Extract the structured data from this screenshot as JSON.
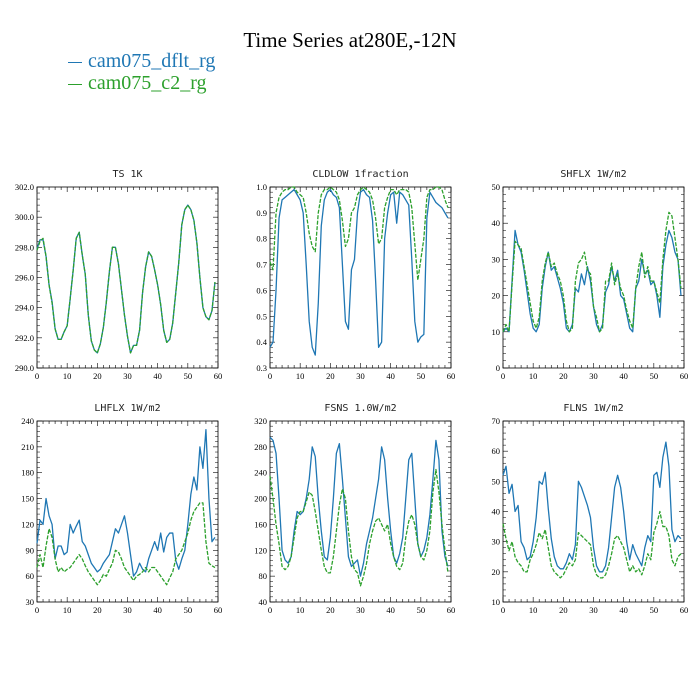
{
  "title": "Time Series at280E,-12N",
  "legend": [
    {
      "label": "cam075_dflt_rg",
      "color": "#1f77b4"
    },
    {
      "label": "cam075_c2_rg",
      "color": "#2ca02c"
    }
  ],
  "chart_data": [
    {
      "type": "line",
      "title": "TS   1K",
      "xlim": [
        0,
        60
      ],
      "ylim": [
        290,
        302
      ],
      "xticks": [
        0,
        10,
        20,
        30,
        40,
        50,
        60
      ],
      "yticks": [
        "290.0",
        "292.0",
        "294.0",
        "296.0",
        "298.0",
        "300.0",
        "302.0"
      ],
      "series": [
        {
          "name": "cam075_dflt_rg",
          "values": [
            297.9,
            298.5,
            298.5,
            297.4,
            295.5,
            294.4,
            292.6,
            291.9,
            291.9,
            292.4,
            292.8,
            294.6,
            296.5,
            298.6,
            299.0,
            297.5,
            296.2,
            293.5,
            291.8,
            291.2,
            291.0,
            291.6,
            292.7,
            294.4,
            296.4,
            298.0,
            298.0,
            296.9,
            295.2,
            293.5,
            292.1,
            291.0,
            291.5,
            291.5,
            292.5,
            295.0,
            296.7,
            297.7,
            297.4,
            296.5,
            295.5,
            294.2,
            292.5,
            291.7,
            291.9,
            293.0,
            295.0,
            297.0,
            299.5,
            300.5,
            300.8,
            300.5,
            299.8,
            298.3,
            296.0,
            294.0,
            293.4,
            293.2,
            293.8,
            295.7
          ]
        },
        {
          "name": "cam075_c2_rg",
          "values": [
            297.8,
            298.4,
            298.6,
            297.4,
            295.5,
            294.3,
            292.6,
            291.9,
            291.9,
            292.4,
            292.8,
            294.6,
            296.5,
            298.6,
            299.0,
            297.5,
            296.2,
            293.5,
            291.8,
            291.2,
            291.0,
            291.6,
            292.7,
            294.4,
            296.4,
            298.0,
            298.0,
            296.9,
            295.2,
            293.5,
            292.1,
            291.0,
            291.5,
            291.5,
            292.5,
            295.0,
            296.7,
            297.7,
            297.4,
            296.5,
            295.5,
            294.2,
            292.5,
            291.7,
            291.9,
            293.0,
            295.0,
            297.0,
            299.5,
            300.5,
            300.8,
            300.5,
            299.8,
            298.3,
            296.0,
            294.0,
            293.4,
            293.2,
            293.8,
            295.7
          ]
        }
      ]
    },
    {
      "type": "line",
      "title": "CLDLOW   1fraction",
      "xlim": [
        0,
        60
      ],
      "ylim": [
        0.3,
        1.0
      ],
      "xticks": [
        0,
        10,
        20,
        30,
        40,
        50,
        60
      ],
      "yticks": [
        "0.3",
        "0.4",
        "0.5",
        "0.6",
        "0.7",
        "0.8",
        "0.9",
        "1.0"
      ],
      "series": [
        {
          "name": "cam075_dflt_rg",
          "values": [
            0.38,
            0.4,
            0.6,
            0.88,
            0.95,
            0.96,
            0.97,
            0.98,
            0.99,
            0.97,
            0.95,
            0.9,
            0.7,
            0.48,
            0.38,
            0.35,
            0.55,
            0.85,
            0.95,
            0.98,
            0.99,
            0.97,
            0.96,
            0.92,
            0.7,
            0.48,
            0.45,
            0.68,
            0.72,
            0.9,
            0.98,
            0.99,
            0.97,
            0.96,
            0.87,
            0.64,
            0.38,
            0.4,
            0.8,
            0.9,
            0.97,
            0.98,
            0.86,
            0.98,
            0.97,
            0.95,
            0.93,
            0.72,
            0.48,
            0.4,
            0.42,
            0.43,
            0.88,
            0.98,
            0.96,
            0.94,
            0.93,
            0.92,
            0.9,
            0.88
          ]
        },
        {
          "name": "cam075_c2_rg",
          "values": [
            0.71,
            0.68,
            0.9,
            0.96,
            0.98,
            0.99,
            0.99,
            1.0,
            1.0,
            0.98,
            0.97,
            0.96,
            0.9,
            0.82,
            0.77,
            0.75,
            0.9,
            0.97,
            0.99,
            0.99,
            1.0,
            0.99,
            0.98,
            0.95,
            0.87,
            0.77,
            0.8,
            0.9,
            0.92,
            0.97,
            0.99,
            1.0,
            0.99,
            0.98,
            0.95,
            0.88,
            0.78,
            0.8,
            0.92,
            0.96,
            0.99,
            0.99,
            0.97,
            0.99,
            0.99,
            0.99,
            0.98,
            0.92,
            0.78,
            0.64,
            0.72,
            0.8,
            0.96,
            0.99,
            0.99,
            1.0,
            1.0,
            0.99,
            0.95,
            0.92
          ]
        }
      ]
    },
    {
      "type": "line",
      "title": "SHFLX   1W/m2",
      "xlim": [
        0,
        60
      ],
      "ylim": [
        0,
        50
      ],
      "xticks": [
        0,
        10,
        20,
        30,
        40,
        50,
        60
      ],
      "yticks": [
        "0",
        "10",
        "20",
        "30",
        "40",
        "50"
      ],
      "series": [
        {
          "name": "cam075_dflt_rg",
          "values": [
            10,
            11,
            10,
            24,
            38,
            34,
            32,
            27,
            21,
            15,
            11,
            10,
            12,
            22,
            28,
            32,
            27,
            28,
            25,
            22,
            18,
            11,
            10,
            12,
            22,
            21,
            26,
            23,
            28,
            24,
            17,
            12,
            10,
            12,
            21,
            23,
            28,
            24,
            27,
            20,
            19,
            15,
            11,
            10,
            22,
            24,
            30,
            26,
            27,
            23,
            24,
            20,
            14,
            28,
            34,
            38,
            36,
            32,
            30,
            20
          ]
        },
        {
          "name": "cam075_c2_rg",
          "values": [
            10,
            12,
            10,
            23,
            35,
            34,
            33,
            28,
            23,
            18,
            13,
            11,
            14,
            24,
            29,
            32,
            28,
            29,
            26,
            24,
            20,
            13,
            10,
            11,
            24,
            29,
            30,
            32,
            27,
            26,
            17,
            14,
            10,
            11,
            24,
            24,
            29,
            23,
            26,
            22,
            20,
            16,
            13,
            11,
            22,
            28,
            32,
            25,
            28,
            24,
            24,
            21,
            18,
            30,
            38,
            43,
            42,
            36,
            30,
            22
          ]
        }
      ]
    },
    {
      "type": "line",
      "title": "LHFLX   1W/m2",
      "xlim": [
        0,
        60
      ],
      "ylim": [
        30,
        240
      ],
      "xticks": [
        0,
        10,
        20,
        30,
        40,
        50,
        60
      ],
      "yticks": [
        "30",
        "60",
        "90",
        "120",
        "150",
        "180",
        "210",
        "240"
      ],
      "series": [
        {
          "name": "cam075_dflt_rg",
          "values": [
            98,
            125,
            120,
            150,
            130,
            120,
            80,
            95,
            95,
            85,
            88,
            120,
            110,
            118,
            125,
            100,
            95,
            85,
            75,
            70,
            65,
            68,
            75,
            80,
            85,
            100,
            115,
            110,
            120,
            130,
            110,
            85,
            60,
            65,
            75,
            68,
            65,
            80,
            90,
            100,
            90,
            110,
            88,
            105,
            110,
            110,
            78,
            68,
            80,
            90,
            120,
            155,
            175,
            160,
            210,
            185,
            230,
            150,
            100,
            105
          ]
        },
        {
          "name": "cam075_c2_rg",
          "values": [
            70,
            85,
            70,
            95,
            115,
            105,
            80,
            65,
            70,
            65,
            68,
            70,
            75,
            80,
            85,
            80,
            72,
            65,
            60,
            55,
            50,
            55,
            62,
            60,
            68,
            75,
            90,
            88,
            80,
            70,
            65,
            60,
            55,
            60,
            62,
            65,
            70,
            65,
            70,
            70,
            65,
            60,
            55,
            50,
            58,
            65,
            80,
            85,
            90,
            100,
            110,
            125,
            135,
            140,
            145,
            145,
            100,
            75,
            72,
            70
          ]
        }
      ]
    },
    {
      "type": "line",
      "title": "FSNS   1.0W/m2",
      "xlim": [
        0,
        60
      ],
      "ylim": [
        40,
        320
      ],
      "xticks": [
        0,
        10,
        20,
        30,
        40,
        50,
        60
      ],
      "yticks": [
        "40",
        "80",
        "120",
        "160",
        "200",
        "240",
        "280",
        "320"
      ],
      "series": [
        {
          "name": "cam075_dflt_rg",
          "values": [
            295,
            290,
            270,
            200,
            120,
            105,
            100,
            110,
            150,
            180,
            175,
            180,
            200,
            230,
            280,
            265,
            200,
            150,
            110,
            105,
            140,
            200,
            270,
            285,
            230,
            170,
            110,
            95,
            100,
            105,
            80,
            100,
            130,
            150,
            170,
            200,
            230,
            280,
            260,
            200,
            150,
            110,
            100,
            115,
            140,
            200,
            260,
            270,
            200,
            130,
            110,
            120,
            140,
            175,
            230,
            290,
            260,
            150,
            110,
            95
          ]
        },
        {
          "name": "cam075_c2_rg",
          "values": [
            235,
            200,
            160,
            130,
            95,
            90,
            95,
            110,
            140,
            170,
            180,
            180,
            195,
            210,
            205,
            180,
            150,
            120,
            95,
            85,
            85,
            110,
            150,
            190,
            215,
            200,
            150,
            110,
            90,
            85,
            65,
            80,
            100,
            130,
            150,
            165,
            170,
            160,
            150,
            160,
            130,
            110,
            95,
            90,
            100,
            140,
            165,
            175,
            160,
            130,
            110,
            105,
            120,
            150,
            210,
            245,
            210,
            160,
            120,
            85
          ]
        }
      ]
    },
    {
      "type": "line",
      "title": "FLNS   1W/m2",
      "xlim": [
        0,
        60
      ],
      "ylim": [
        10,
        70
      ],
      "xticks": [
        0,
        10,
        20,
        30,
        40,
        50,
        60
      ],
      "yticks": [
        "10",
        "20",
        "30",
        "40",
        "50",
        "60",
        "70"
      ],
      "series": [
        {
          "name": "cam075_dflt_rg",
          "values": [
            52,
            55,
            46,
            49,
            40,
            42,
            30,
            28,
            24,
            25,
            30,
            38,
            50,
            49,
            53,
            41,
            31,
            25,
            22,
            21,
            21,
            23,
            26,
            24,
            29,
            50,
            48,
            45,
            42,
            38,
            28,
            22,
            20,
            20,
            22,
            28,
            38,
            48,
            52,
            48,
            40,
            30,
            24,
            29,
            26,
            24,
            22,
            28,
            32,
            30,
            52,
            53,
            48,
            58,
            63,
            55,
            34,
            30,
            32,
            31
          ]
        },
        {
          "name": "cam075_c2_rg",
          "values": [
            36,
            31,
            27,
            30,
            25,
            23,
            22,
            20,
            20,
            24,
            26,
            29,
            33,
            31,
            34,
            28,
            22,
            20,
            19,
            18,
            19,
            21,
            23,
            22,
            24,
            33,
            32,
            31,
            30,
            29,
            22,
            19,
            18,
            18,
            19,
            22,
            26,
            31,
            32,
            30,
            28,
            24,
            20,
            22,
            20,
            21,
            19,
            22,
            26,
            24,
            33,
            36,
            40,
            35,
            35,
            32,
            24,
            22,
            25,
            26
          ]
        }
      ]
    }
  ]
}
